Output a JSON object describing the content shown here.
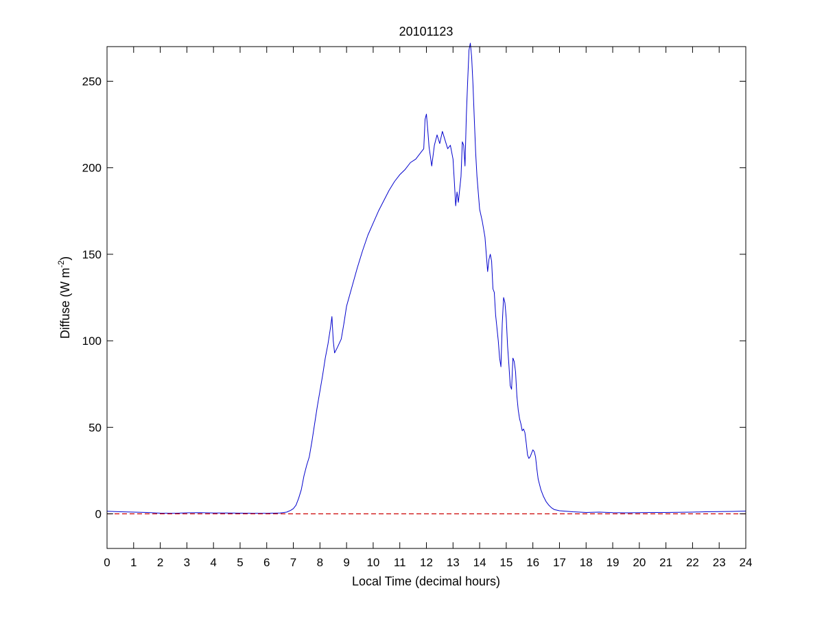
{
  "chart_data": {
    "type": "line",
    "title": "20101123",
    "xlabel": "Local Time (decimal hours)",
    "ylabel_main": "Diffuse (W m",
    "ylabel_sup": "-2",
    "ylabel_close": ")",
    "xlim": [
      0,
      24
    ],
    "ylim": [
      -20,
      270
    ],
    "xticks": [
      0,
      1,
      2,
      3,
      4,
      5,
      6,
      7,
      8,
      9,
      10,
      11,
      12,
      13,
      14,
      15,
      16,
      17,
      18,
      19,
      20,
      21,
      22,
      23,
      24
    ],
    "yticks": [
      0,
      50,
      100,
      150,
      200,
      250
    ],
    "grid": false,
    "series": [
      {
        "color": "#0000cc",
        "style": "solid",
        "points": [
          [
            0,
            1.5
          ],
          [
            0.5,
            1.2
          ],
          [
            1,
            1
          ],
          [
            1.5,
            0.8
          ],
          [
            2,
            0.4
          ],
          [
            2.5,
            0.3
          ],
          [
            3,
            0.6
          ],
          [
            3.5,
            0.7
          ],
          [
            4,
            0.5
          ],
          [
            4.5,
            0.5
          ],
          [
            5,
            0.4
          ],
          [
            5.5,
            0.3
          ],
          [
            6,
            0.3
          ],
          [
            6.5,
            0.5
          ],
          [
            6.75,
            1
          ],
          [
            6.9,
            2
          ],
          [
            7,
            3
          ],
          [
            7.1,
            5
          ],
          [
            7.2,
            9
          ],
          [
            7.3,
            14
          ],
          [
            7.4,
            22
          ],
          [
            7.5,
            28
          ],
          [
            7.6,
            33
          ],
          [
            7.7,
            42
          ],
          [
            7.8,
            52
          ],
          [
            7.9,
            62
          ],
          [
            8,
            71
          ],
          [
            8.1,
            80
          ],
          [
            8.2,
            90
          ],
          [
            8.3,
            98
          ],
          [
            8.4,
            108
          ],
          [
            8.45,
            114
          ],
          [
            8.5,
            100
          ],
          [
            8.55,
            93
          ],
          [
            8.65,
            96
          ],
          [
            8.8,
            101
          ],
          [
            8.9,
            110
          ],
          [
            9,
            120
          ],
          [
            9.2,
            131
          ],
          [
            9.4,
            142
          ],
          [
            9.6,
            152
          ],
          [
            9.8,
            161
          ],
          [
            10,
            168
          ],
          [
            10.2,
            175
          ],
          [
            10.4,
            181
          ],
          [
            10.6,
            187
          ],
          [
            10.8,
            192
          ],
          [
            11,
            196
          ],
          [
            11.2,
            199
          ],
          [
            11.4,
            203
          ],
          [
            11.6,
            205
          ],
          [
            11.8,
            209
          ],
          [
            11.9,
            211
          ],
          [
            11.95,
            228
          ],
          [
            12,
            231
          ],
          [
            12.05,
            222
          ],
          [
            12.1,
            212
          ],
          [
            12.2,
            201
          ],
          [
            12.3,
            213
          ],
          [
            12.4,
            219
          ],
          [
            12.5,
            214
          ],
          [
            12.6,
            221
          ],
          [
            12.7,
            216
          ],
          [
            12.8,
            211
          ],
          [
            12.9,
            213
          ],
          [
            13,
            205
          ],
          [
            13.05,
            192
          ],
          [
            13.1,
            178
          ],
          [
            13.15,
            186
          ],
          [
            13.2,
            180
          ],
          [
            13.3,
            195
          ],
          [
            13.35,
            215
          ],
          [
            13.4,
            213
          ],
          [
            13.45,
            201
          ],
          [
            13.5,
            230
          ],
          [
            13.55,
            250
          ],
          [
            13.6,
            268
          ],
          [
            13.65,
            272
          ],
          [
            13.7,
            264
          ],
          [
            13.75,
            248
          ],
          [
            13.8,
            228
          ],
          [
            13.85,
            209
          ],
          [
            13.9,
            195
          ],
          [
            14,
            176
          ],
          [
            14.1,
            169
          ],
          [
            14.2,
            160
          ],
          [
            14.25,
            150
          ],
          [
            14.3,
            140
          ],
          [
            14.35,
            147
          ],
          [
            14.4,
            150
          ],
          [
            14.45,
            146
          ],
          [
            14.5,
            130
          ],
          [
            14.55,
            128
          ],
          [
            14.6,
            115
          ],
          [
            14.7,
            100
          ],
          [
            14.75,
            90
          ],
          [
            14.8,
            85
          ],
          [
            14.85,
            110
          ],
          [
            14.9,
            125
          ],
          [
            14.95,
            122
          ],
          [
            15,
            113
          ],
          [
            15.05,
            97
          ],
          [
            15.1,
            86
          ],
          [
            15.15,
            74
          ],
          [
            15.2,
            72
          ],
          [
            15.25,
            90
          ],
          [
            15.3,
            88
          ],
          [
            15.35,
            82
          ],
          [
            15.4,
            68
          ],
          [
            15.45,
            60
          ],
          [
            15.5,
            55
          ],
          [
            15.55,
            52
          ],
          [
            15.6,
            48
          ],
          [
            15.65,
            49
          ],
          [
            15.7,
            47
          ],
          [
            15.75,
            41
          ],
          [
            15.8,
            34
          ],
          [
            15.85,
            32
          ],
          [
            15.9,
            33
          ],
          [
            16,
            37
          ],
          [
            16.05,
            36
          ],
          [
            16.1,
            33
          ],
          [
            16.15,
            26
          ],
          [
            16.2,
            20
          ],
          [
            16.3,
            14
          ],
          [
            16.4,
            10
          ],
          [
            16.5,
            7
          ],
          [
            16.6,
            5
          ],
          [
            16.7,
            3.5
          ],
          [
            16.8,
            2.5
          ],
          [
            17,
            1.8
          ],
          [
            17.5,
            1.2
          ],
          [
            18,
            0.8
          ],
          [
            18.5,
            1
          ],
          [
            19,
            0.7
          ],
          [
            19.5,
            0.6
          ],
          [
            20,
            0.7
          ],
          [
            20.5,
            0.8
          ],
          [
            21,
            0.8
          ],
          [
            21.5,
            0.9
          ],
          [
            22,
            1
          ],
          [
            22.5,
            1.2
          ],
          [
            23,
            1.3
          ],
          [
            23.5,
            1.4
          ],
          [
            24,
            1.6
          ]
        ]
      },
      {
        "color": "#cc0000",
        "style": "dashed",
        "points": [
          [
            0,
            0
          ],
          [
            24,
            0
          ]
        ]
      }
    ]
  }
}
